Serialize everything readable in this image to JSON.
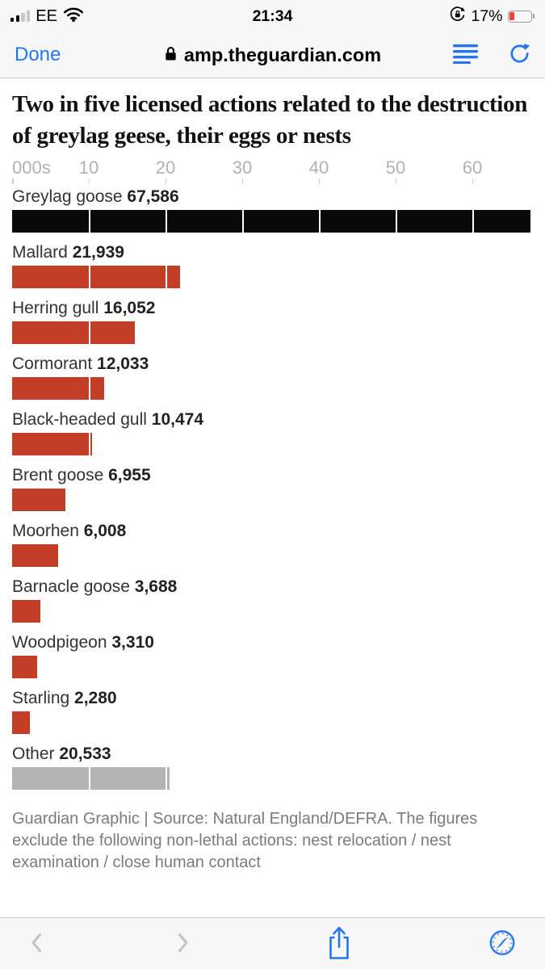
{
  "status_bar": {
    "carrier": "EE",
    "time": "21:34",
    "battery_percent": "17%"
  },
  "url_bar": {
    "done_label": "Done",
    "domain": "amp.theguardian.com"
  },
  "article": {
    "title": "Two in five licensed actions related to the destruction of greylag geese, their eggs or nests",
    "source_note": "Guardian Graphic | Source: Natural England/DEFRA. The figures exclude the following non-lethal actions: nest relocation / nest examination / close human contact"
  },
  "chart_data": {
    "type": "bar",
    "orientation": "horizontal",
    "title": "Two in five licensed actions related to the destruction of greylag geese, their eggs or nests",
    "unit_label": "000s",
    "axis_ticks": [
      10,
      20,
      30,
      40,
      50,
      60
    ],
    "axis_max": 67900,
    "grid": "white-lines-over-bars",
    "categories": [
      "Greylag goose",
      "Mallard",
      "Herring gull",
      "Cormorant",
      "Black-headed gull",
      "Brent goose",
      "Moorhen",
      "Barnacle goose",
      "Woodpigeon",
      "Starling",
      "Other"
    ],
    "values": [
      67586,
      21939,
      16052,
      12033,
      10474,
      6955,
      6008,
      3688,
      3310,
      2280,
      20533
    ],
    "value_labels": [
      "67,586",
      "21,939",
      "16,052",
      "12,033",
      "10,474",
      "6,955",
      "6,008",
      "3,688",
      "3,310",
      "2,280",
      "20,533"
    ],
    "bar_colors": [
      "#0a0a0a",
      "#c43d26",
      "#c43d26",
      "#c43d26",
      "#c43d26",
      "#c43d26",
      "#c43d26",
      "#c43d26",
      "#c43d26",
      "#c43d26",
      "#b4b4b4"
    ],
    "colors": {
      "highlight": "#0a0a0a",
      "default": "#c43d26",
      "other": "#b4b4b4",
      "axis_text": "#b1b1b1"
    }
  },
  "toolbar_icons": [
    "back",
    "forward",
    "share",
    "safari"
  ]
}
